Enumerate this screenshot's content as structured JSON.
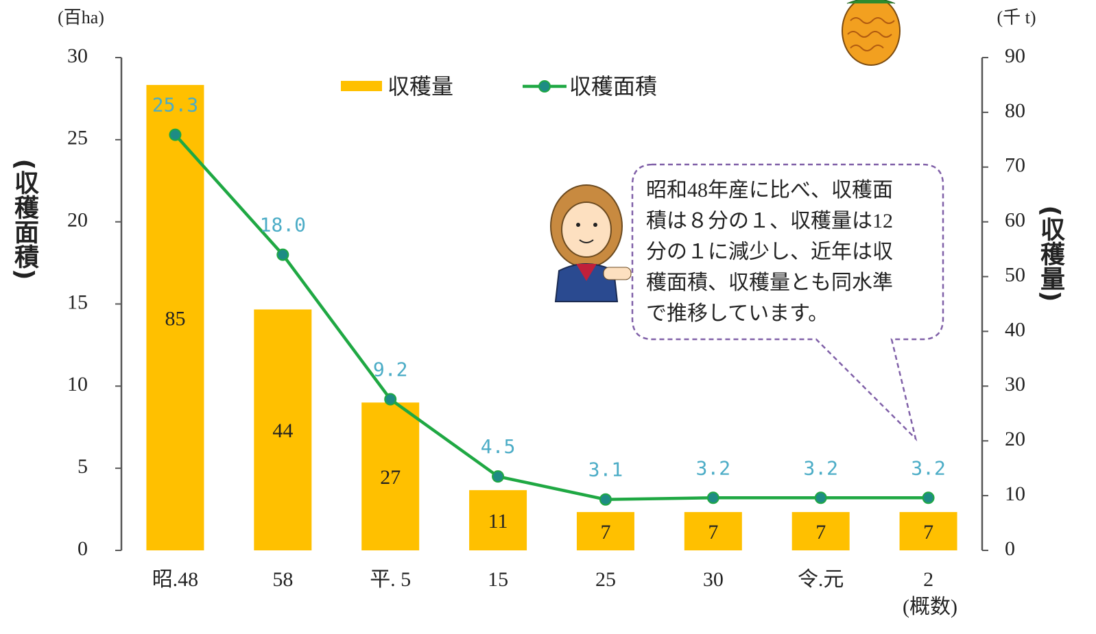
{
  "chart_data": {
    "type": "combo",
    "y_unit": "(百ha)",
    "y2_unit": "(千 t)",
    "ylabel": "(収穫面積)",
    "y2label": "(収穫量)",
    "categories": [
      "昭.48",
      "58",
      "平. 5",
      "15",
      "25",
      "30",
      "令.元",
      "2"
    ],
    "category_note": "(概数)",
    "series": [
      {
        "name": "収穫量",
        "type": "bar",
        "axis": "y2",
        "color": "#FFC000",
        "values": [
          85,
          44,
          27,
          11,
          7,
          7,
          7,
          7
        ]
      },
      {
        "name": "収穫面積",
        "type": "line",
        "color": "#1FA843",
        "marker_color": "#1E8C84",
        "label_color": "#4BACC6",
        "values": [
          25.3,
          18.0,
          9.2,
          4.5,
          3.1,
          3.2,
          3.2,
          3.2
        ],
        "value_labels": [
          "25.3",
          "18.0",
          "9.2",
          "4.5",
          "3.1",
          "3.2",
          "3.2",
          "3.2"
        ]
      }
    ],
    "ylim": [
      0,
      30
    ],
    "yticks": [
      0,
      5,
      10,
      15,
      20,
      25,
      30
    ],
    "y2lim": [
      0,
      90
    ],
    "y2ticks": [
      0,
      10,
      20,
      30,
      40,
      50,
      60,
      70,
      80,
      90
    ],
    "callout": [
      "昭和48年産に比べ、収穫面",
      "積は８分の１、収穫量は12",
      "分の１に減少し、近年は収",
      "穫面積、収穫量とも同水準",
      "で推移しています。"
    ]
  }
}
